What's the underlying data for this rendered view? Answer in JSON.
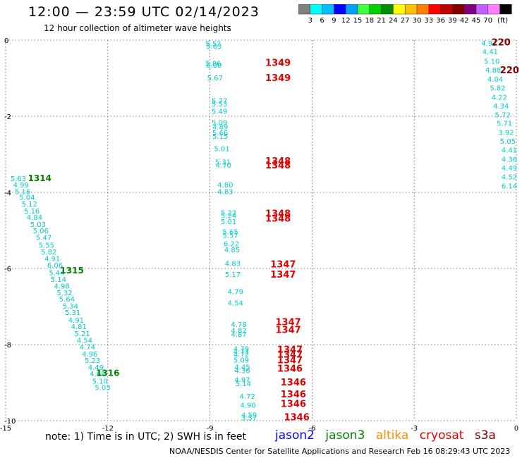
{
  "header": {
    "title": "12:00 — 23:59 UTC 02/14/2023",
    "subtitle": "12 hour collection of altimeter wave heights"
  },
  "colorbar": {
    "colors": [
      "#808080",
      "#00ffff",
      "#00c0ff",
      "#0000ff",
      "#00a0ff",
      "#40ff40",
      "#00d000",
      "#009000",
      "#ffff00",
      "#ffc000",
      "#ff8000",
      "#ff0000",
      "#c00000",
      "#800000",
      "#800080",
      "#c060ff",
      "#ff80ff",
      "#000000"
    ],
    "labels": [
      "3",
      "6",
      "9",
      "12",
      "15",
      "18",
      "21",
      "24",
      "27",
      "30",
      "33",
      "36",
      "39",
      "42",
      "45",
      "70",
      "(ft)"
    ]
  },
  "note": "note:  1) Time is in UTC;  2) SWH is in feet",
  "satellites": [
    {
      "name": "jason2",
      "color": "#0000ff"
    },
    {
      "name": "jason3",
      "color": "#008000"
    },
    {
      "name": "altika",
      "color": "#ff8c00"
    },
    {
      "name": "cryosat",
      "color": "#e00000"
    },
    {
      "name": "s3a",
      "color": "#800000"
    }
  ],
  "footer": "NOAA/NESDIS Center for Satellite Applications and Research    Feb 16 08:29:43 UTC 2023",
  "chart_data": {
    "type": "scatter",
    "xlim": [
      -15,
      0
    ],
    "ylim": [
      -10,
      0
    ],
    "x_ticks": [
      "-15",
      "-12",
      "-9",
      "-6",
      "-3",
      "0"
    ],
    "y_ticks": [
      "0",
      "-2",
      "-4",
      "-6",
      "-8",
      "-10"
    ],
    "grid": true,
    "tracks": [
      {
        "satellite": "jason3",
        "color": "#00cccc",
        "points": [
          [
            -14.63,
            -3.63,
            "5.63"
          ],
          [
            -14.55,
            -3.8,
            "4.99"
          ],
          [
            -14.5,
            -3.97,
            "5.16"
          ],
          [
            -14.37,
            -4.12,
            "5.04"
          ],
          [
            -14.3,
            -4.3,
            "5.12"
          ],
          [
            -14.23,
            -4.48,
            "5.16"
          ],
          [
            -14.15,
            -4.65,
            "4.84"
          ],
          [
            -14.05,
            -4.83,
            "5.03"
          ],
          [
            -13.97,
            -5.0,
            "5.06"
          ],
          [
            -13.88,
            -5.18,
            "5.47"
          ],
          [
            -13.8,
            -5.38,
            "5.55"
          ],
          [
            -13.73,
            -5.56,
            "5.82"
          ],
          [
            -13.63,
            -5.73,
            "4.91"
          ],
          [
            -13.55,
            -5.91,
            "6.06"
          ],
          [
            -13.5,
            -6.1,
            "5.44"
          ],
          [
            -13.45,
            -6.28,
            "5.14"
          ],
          [
            -13.35,
            -6.45,
            "4.98"
          ],
          [
            -13.27,
            -6.63,
            "5.32"
          ],
          [
            -13.2,
            -6.8,
            "5.64"
          ],
          [
            -13.1,
            -6.98,
            "5.34"
          ],
          [
            -13.03,
            -7.15,
            "5.31"
          ],
          [
            -12.93,
            -7.35,
            "4.91"
          ],
          [
            -12.85,
            -7.52,
            "4.81"
          ],
          [
            -12.75,
            -7.7,
            "5.21"
          ],
          [
            -12.68,
            -7.88,
            "4.54"
          ],
          [
            -12.6,
            -8.06,
            "4.74"
          ],
          [
            -12.53,
            -8.24,
            "4.96"
          ],
          [
            -12.45,
            -8.41,
            "5.23"
          ],
          [
            -12.35,
            -8.59,
            "4.49"
          ],
          [
            -12.3,
            -8.76,
            "4.68"
          ],
          [
            -12.23,
            -8.95,
            "5.10"
          ],
          [
            -12.15,
            -9.12,
            "5.03"
          ]
        ],
        "pass_labels": [
          {
            "text": "1314",
            "x": -14.0,
            "y": -3.63
          },
          {
            "text": "1315",
            "x": -13.05,
            "y": -6.06
          },
          {
            "text": "1316",
            "x": -12.0,
            "y": -8.75
          }
        ]
      },
      {
        "satellite": "jason3",
        "color": "#00cccc",
        "points": [
          [
            -8.9,
            -0.08,
            "5.52"
          ],
          [
            -8.88,
            -0.15,
            "5.63"
          ],
          [
            -8.9,
            -0.6,
            "5.86"
          ],
          [
            -8.88,
            -0.65,
            "6.00"
          ],
          [
            -8.85,
            -0.98,
            "5.67"
          ],
          [
            -8.72,
            -1.58,
            "5.77"
          ],
          [
            -8.72,
            -1.67,
            "5.53"
          ],
          [
            -8.72,
            -1.86,
            "5.49"
          ],
          [
            -8.72,
            -2.16,
            "5.09"
          ],
          [
            -8.7,
            -2.27,
            "4.89"
          ],
          [
            -8.7,
            -2.43,
            "5.66"
          ],
          [
            -8.7,
            -2.52,
            "5.15"
          ],
          [
            -8.65,
            -2.84,
            "5.01"
          ],
          [
            -8.62,
            -3.19,
            "5.31"
          ],
          [
            -8.6,
            -3.28,
            "4.70"
          ],
          [
            -8.55,
            -3.8,
            "4.80"
          ],
          [
            -8.55,
            -3.97,
            "4.83"
          ],
          [
            -8.45,
            -4.53,
            "5.22"
          ],
          [
            -8.45,
            -4.6,
            "5.24"
          ],
          [
            -8.45,
            -4.76,
            "5.01"
          ],
          [
            -8.4,
            -5.03,
            "5.65"
          ],
          [
            -8.4,
            -5.12,
            "5.57"
          ],
          [
            -8.37,
            -5.34,
            "6.22"
          ],
          [
            -8.35,
            -5.5,
            "4.85"
          ],
          [
            -8.33,
            -5.86,
            "4.83"
          ],
          [
            -8.33,
            -6.15,
            "5.17"
          ],
          [
            -8.25,
            -6.6,
            "4.79"
          ],
          [
            -8.25,
            -6.9,
            "4.54"
          ],
          [
            -8.15,
            -7.46,
            "4.78"
          ],
          [
            -8.15,
            -7.62,
            "4.82"
          ],
          [
            -8.15,
            -7.72,
            "4.87"
          ],
          [
            -8.08,
            -8.1,
            "4.79"
          ],
          [
            -8.08,
            -8.18,
            "4.73"
          ],
          [
            -8.08,
            -8.25,
            "4.72"
          ],
          [
            -8.08,
            -8.4,
            "5.09"
          ],
          [
            -8.05,
            -8.58,
            "4.45"
          ],
          [
            -8.05,
            -8.68,
            "4.36"
          ],
          [
            -8.05,
            -8.92,
            "4.97"
          ],
          [
            -8.02,
            -9.02,
            "5.14"
          ],
          [
            -7.9,
            -9.35,
            "4.72"
          ],
          [
            -7.88,
            -9.58,
            "4.90"
          ],
          [
            -7.85,
            -9.84,
            "4.59"
          ],
          [
            -7.85,
            -9.92,
            "3.57"
          ]
        ],
        "pass_labels": []
      },
      {
        "satellite": "jason3",
        "color": "#00cccc",
        "points": [
          [
            -0.8,
            -0.07,
            "4.93"
          ],
          [
            -0.77,
            -0.3,
            "4.41"
          ],
          [
            -0.72,
            -0.55,
            "5.10"
          ],
          [
            -0.68,
            -0.78,
            "4.88"
          ],
          [
            -0.62,
            -1.02,
            "4.04"
          ],
          [
            -0.55,
            -1.25,
            "5.82"
          ],
          [
            -0.5,
            -1.49,
            "4.22"
          ],
          [
            -0.45,
            -1.72,
            "4.34"
          ],
          [
            -0.4,
            -1.95,
            "5.72"
          ],
          [
            -0.35,
            -2.18,
            "5.71"
          ],
          [
            -0.3,
            -2.42,
            "3.92"
          ],
          [
            -0.25,
            -2.65,
            "5.05"
          ],
          [
            -0.2,
            -2.88,
            "4.41"
          ],
          [
            -0.15,
            -3.12,
            "4.36"
          ],
          [
            -0.1,
            -3.35,
            "4.49"
          ],
          [
            -0.05,
            -3.58,
            "4.52"
          ],
          [
            0.0,
            -3.82,
            "6.14"
          ]
        ],
        "pass_labels": []
      }
    ],
    "cryosat_labels": [
      {
        "text": "1349",
        "x": -7.0,
        "y": -0.58
      },
      {
        "text": "1349",
        "x": -7.0,
        "y": -0.98
      },
      {
        "text": "1348",
        "x": -7.0,
        "y": -3.17
      },
      {
        "text": "1348",
        "x": -7.0,
        "y": -3.28
      },
      {
        "text": "1348",
        "x": -7.0,
        "y": -4.55
      },
      {
        "text": "1348",
        "x": -7.0,
        "y": -4.68
      },
      {
        "text": "1347",
        "x": -6.85,
        "y": -5.88
      },
      {
        "text": "1347",
        "x": -6.85,
        "y": -6.15
      },
      {
        "text": "1347",
        "x": -6.7,
        "y": -7.4
      },
      {
        "text": "1347",
        "x": -6.7,
        "y": -7.6
      },
      {
        "text": "1347",
        "x": -6.65,
        "y": -8.12
      },
      {
        "text": "1347",
        "x": -6.65,
        "y": -8.25
      },
      {
        "text": "1347",
        "x": -6.65,
        "y": -8.4
      },
      {
        "text": "1346",
        "x": -6.65,
        "y": -8.62
      },
      {
        "text": "1346",
        "x": -6.55,
        "y": -8.98
      },
      {
        "text": "1346",
        "x": -6.55,
        "y": -9.3
      },
      {
        "text": "1346",
        "x": -6.55,
        "y": -9.55
      },
      {
        "text": "1346",
        "x": -6.45,
        "y": -9.9
      }
    ],
    "s3a_labels": [
      {
        "text": "220",
        "x": -0.45,
        "y": -0.05
      },
      {
        "text": "220",
        "x": -0.2,
        "y": -0.78
      }
    ]
  }
}
